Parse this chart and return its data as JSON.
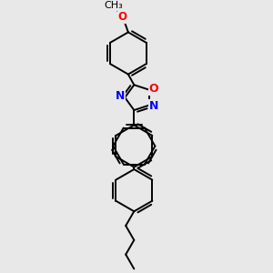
{
  "bg_color": "#e8e8e8",
  "bond_color": "#000000",
  "bond_width": 1.4,
  "atom_colors": {
    "O": "#ff0000",
    "N": "#0000ff"
  },
  "font_size": 8.5,
  "dbo": 0.05
}
